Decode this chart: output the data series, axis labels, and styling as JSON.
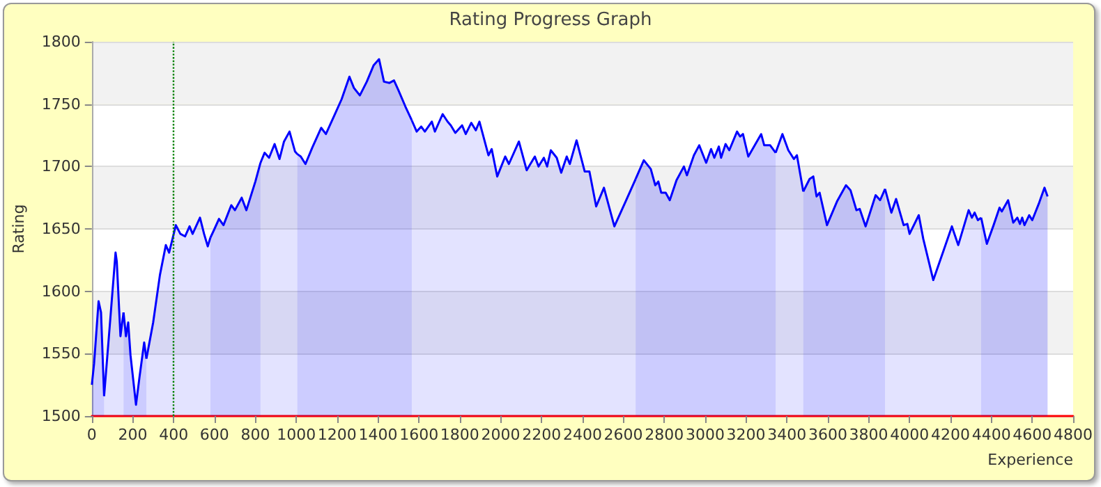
{
  "chart_data": {
    "type": "area",
    "title": "Rating Progress Graph",
    "xlabel": "Experience",
    "ylabel": "Rating",
    "xlim": [
      0,
      4800
    ],
    "xticks": [
      0,
      200,
      400,
      600,
      800,
      1000,
      1200,
      1400,
      1600,
      1800,
      2000,
      2200,
      2400,
      2600,
      2800,
      3000,
      3200,
      3400,
      3600,
      3800,
      4000,
      4200,
      4400,
      4600,
      4800
    ],
    "ylim": [
      1500,
      1800
    ],
    "yticks": [
      1500,
      1550,
      1600,
      1650,
      1700,
      1750,
      1800
    ],
    "grid": "y",
    "marker": "none",
    "ref_lines": [
      {
        "axis": "x",
        "value": 400,
        "label": null,
        "color": "#008000",
        "line_style": "dotted"
      }
    ],
    "series": [
      {
        "color": "#0000ff",
        "x": [
          0,
          11,
          33,
          45,
          60
        ],
        "values": [
          1525,
          1542,
          1592,
          1583,
          1516
        ]
      },
      {
        "color": "#0000ff",
        "x": [
          60,
          89,
          116,
          122,
          140,
          155
        ],
        "values": [
          1516,
          1575,
          1631,
          1624,
          1564,
          1583
        ]
      },
      {
        "color": "#0000ff",
        "x": [
          155,
          167,
          178,
          189,
          216,
          233,
          256,
          267
        ],
        "values": [
          1583,
          1564,
          1575,
          1549,
          1509,
          1531,
          1559,
          1546
        ]
      },
      {
        "color": "#0000ff",
        "x": [
          267,
          300,
          333,
          362,
          378,
          411,
          433,
          456,
          478,
          493,
          529,
          549,
          567,
          580
        ],
        "values": [
          1546,
          1575,
          1613,
          1637,
          1631,
          1653,
          1646,
          1644,
          1652,
          1646,
          1659,
          1646,
          1636,
          1643
        ]
      },
      {
        "color": "#0000ff",
        "x": [
          580,
          600,
          622,
          644,
          682,
          700,
          733,
          756,
          800,
          825
        ],
        "values": [
          1643,
          1650,
          1658,
          1653,
          1669,
          1665,
          1675,
          1665,
          1688,
          1703
        ]
      },
      {
        "color": "#0000ff",
        "x": [
          825,
          845,
          867,
          894,
          918,
          940,
          967,
          994,
          1005
        ],
        "values": [
          1703,
          1711,
          1707,
          1718,
          1706,
          1720,
          1728,
          1712,
          1710
        ]
      },
      {
        "color": "#0000ff",
        "x": [
          1005,
          1022,
          1045,
          1078,
          1122,
          1145,
          1189,
          1222,
          1260,
          1282,
          1311,
          1345,
          1378,
          1405,
          1429,
          1456,
          1478,
          1500,
          1534,
          1565
        ],
        "values": [
          1710,
          1708,
          1702,
          1715,
          1731,
          1726,
          1742,
          1754,
          1772,
          1763,
          1757,
          1768,
          1781,
          1786,
          1768,
          1767,
          1769,
          1761,
          1748,
          1737
        ]
      },
      {
        "color": "#0000ff",
        "x": [
          1565,
          1589,
          1611,
          1629,
          1663,
          1678,
          1716,
          1740,
          1756,
          1778,
          1811,
          1829,
          1856,
          1878,
          1896,
          1922,
          1940,
          1956,
          1983,
          2022,
          2040,
          2089,
          2127,
          2167,
          2185,
          2211,
          2227,
          2245,
          2274,
          2296,
          2323,
          2338,
          2371,
          2411,
          2434,
          2467,
          2505,
          2556,
          2611,
          2660
        ],
        "values": [
          1737,
          1728,
          1732,
          1728,
          1736,
          1728,
          1742,
          1736,
          1733,
          1727,
          1733,
          1726,
          1735,
          1729,
          1736,
          1720,
          1709,
          1714,
          1692,
          1708,
          1702,
          1720,
          1697,
          1708,
          1700,
          1707,
          1700,
          1713,
          1707,
          1695,
          1708,
          1702,
          1721,
          1696,
          1696,
          1668,
          1683,
          1652,
          1672,
          1690
        ]
      },
      {
        "color": "#0000ff",
        "x": [
          2660,
          2700,
          2734,
          2756,
          2771,
          2785,
          2807,
          2827,
          2860,
          2896,
          2911,
          2945,
          2971,
          3005,
          3029,
          3045,
          3067,
          3078,
          3100,
          3118,
          3156,
          3171,
          3185,
          3211,
          3274,
          3289,
          3318,
          3345
        ],
        "values": [
          1690,
          1705,
          1698,
          1685,
          1688,
          1679,
          1679,
          1673,
          1689,
          1700,
          1693,
          1709,
          1717,
          1703,
          1714,
          1707,
          1716,
          1707,
          1718,
          1713,
          1728,
          1724,
          1726,
          1708,
          1726,
          1717,
          1717,
          1711
        ]
      },
      {
        "color": "#0000ff",
        "x": [
          3345,
          3378,
          3407,
          3434,
          3449,
          3480
        ],
        "values": [
          1711,
          1726,
          1713,
          1706,
          1709,
          1680
        ]
      },
      {
        "color": "#0000ff",
        "x": [
          3480,
          3511,
          3529,
          3545,
          3560,
          3596,
          3645,
          3689,
          3711,
          3740,
          3756,
          3785,
          3834,
          3856,
          3880
        ],
        "values": [
          1680,
          1690,
          1692,
          1676,
          1679,
          1653,
          1672,
          1685,
          1681,
          1665,
          1666,
          1652,
          1677,
          1673,
          1682
        ]
      },
      {
        "color": "#0000ff",
        "x": [
          3880,
          3911,
          3934,
          3971,
          3989,
          4000,
          4045,
          4067,
          4116,
          4167,
          4207,
          4238,
          4289,
          4305,
          4318,
          4334,
          4350
        ],
        "values": [
          1682,
          1663,
          1674,
          1653,
          1654,
          1646,
          1661,
          1642,
          1609,
          1633,
          1652,
          1637,
          1665,
          1659,
          1663,
          1657,
          1659
        ]
      },
      {
        "color": "#0000ff",
        "x": [
          4350,
          4378,
          4411,
          4440,
          4451,
          4482,
          4507,
          4527,
          4540,
          4551,
          4562,
          4585,
          4600,
          4634,
          4660,
          4675
        ],
        "values": [
          1659,
          1638,
          1653,
          1667,
          1664,
          1673,
          1655,
          1659,
          1654,
          1659,
          1653,
          1661,
          1657,
          1671,
          1683,
          1676
        ]
      }
    ]
  }
}
